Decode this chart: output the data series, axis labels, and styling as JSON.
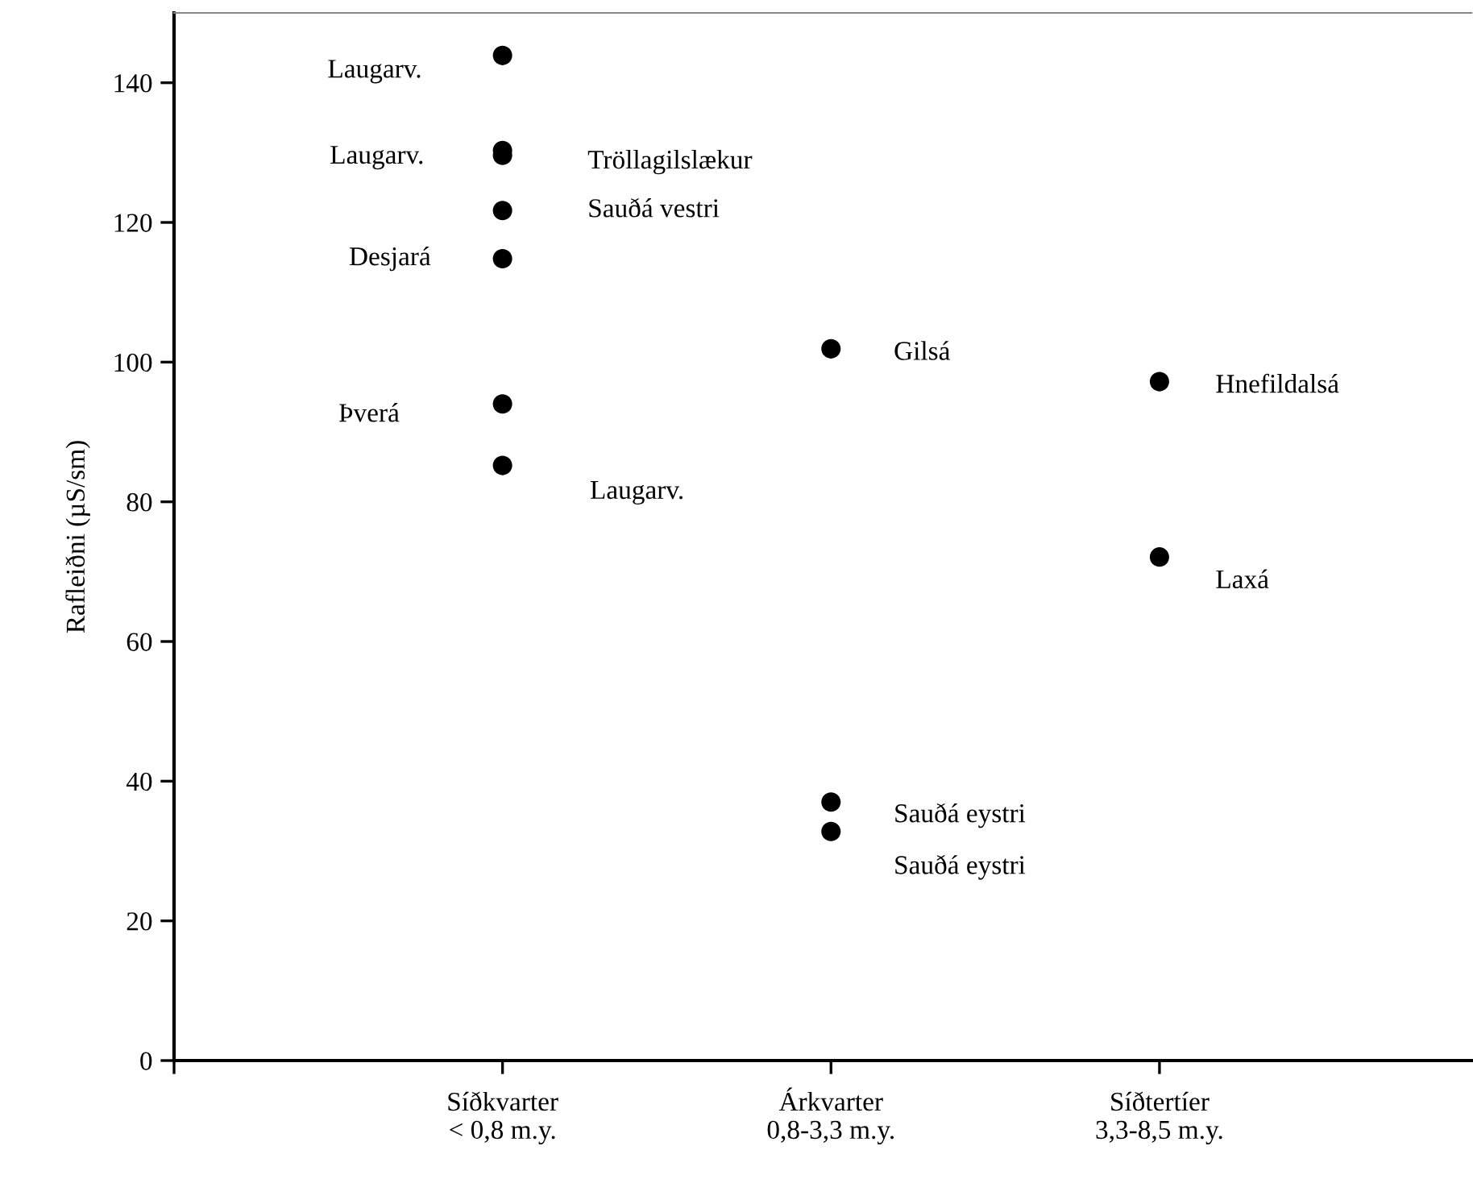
{
  "chart_data": {
    "type": "scatter",
    "ylabel": "Rafleiðni (µS/sm)",
    "categories": [
      "Síðkvarter\n< 0,8 m.y.",
      "Árkvarter\n0,8-3,3 m.y.",
      "Síðtertíer\n3,3-8,5 m.y."
    ],
    "series": [
      {
        "color": "#000000",
        "marker": "circle",
        "x": [
          "Síðkvarter\n< 0,8 m.y.",
          "Síðkvarter\n< 0,8 m.y.",
          "Síðkvarter\n< 0,8 m.y.",
          "Síðkvarter\n< 0,8 m.y.",
          "Síðkvarter\n< 0,8 m.y.",
          "Síðkvarter\n< 0,8 m.y.",
          "Síðkvarter\n< 0,8 m.y.",
          "Árkvarter\n0,8-3,3 m.y.",
          "Síðtertíer\n3,3-8,5 m.y.",
          "Síðtertíer\n3,3-8,5 m.y.",
          "Árkvarter\n0,8-3,3 m.y.",
          "Árkvarter\n0,8-3,3 m.y."
        ],
        "values": [
          143.9,
          130.3,
          129.6,
          121.7,
          114.8,
          94.0,
          85.2,
          101.9,
          97.2,
          72.1,
          37.0,
          32.8
        ]
      }
    ],
    "annotations": [
      "Laugarv.",
      "Laugarv.",
      "Tröllagilslækur",
      "Sauðá vestri",
      "Desjará",
      "Þverá",
      "Laugarv.",
      "Gilsá",
      "Hnefildalsá",
      "Laxá",
      "Sauðá eystri",
      "Sauðá eystri"
    ],
    "ylim": [
      0,
      150
    ],
    "yticks": [
      0,
      20,
      40,
      60,
      80,
      100,
      120,
      140
    ],
    "grid": false,
    "legend": false
  }
}
